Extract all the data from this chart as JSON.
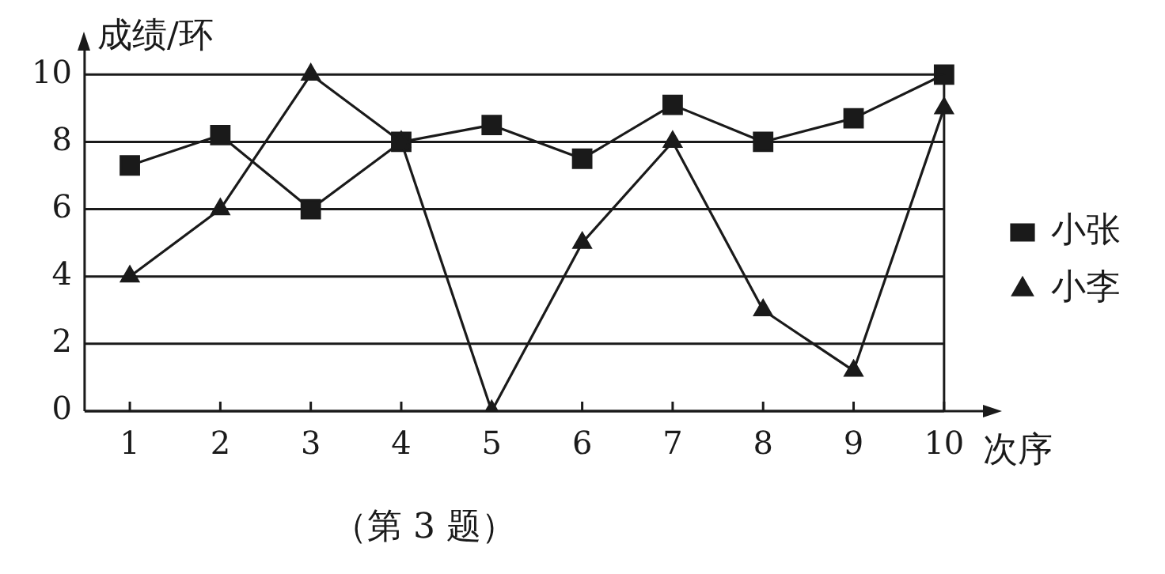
{
  "chart_data": {
    "type": "line",
    "xlabel": "次序",
    "ylabel": "成绩/环",
    "categories": [
      "1",
      "2",
      "3",
      "4",
      "5",
      "6",
      "7",
      "8",
      "9",
      "10"
    ],
    "series": [
      {
        "name": "小张",
        "color": "#1a1a1a",
        "marker": "square",
        "values": [
          7.3,
          8.2,
          6.0,
          8.0,
          8.5,
          7.5,
          9.1,
          8.0,
          8.7,
          10
        ]
      },
      {
        "name": "小李",
        "color": "#1a1a1a",
        "marker": "triangle",
        "values": [
          4,
          6,
          10,
          8,
          0,
          5,
          8,
          3,
          1.2,
          9
        ]
      }
    ],
    "ylim": [
      0,
      10.9
    ],
    "yticks": [
      0,
      2,
      4,
      6,
      8,
      10
    ],
    "grid": "y",
    "legend": "right",
    "line_style": "solid",
    "annotations": [
      "（第 3 题）"
    ]
  }
}
